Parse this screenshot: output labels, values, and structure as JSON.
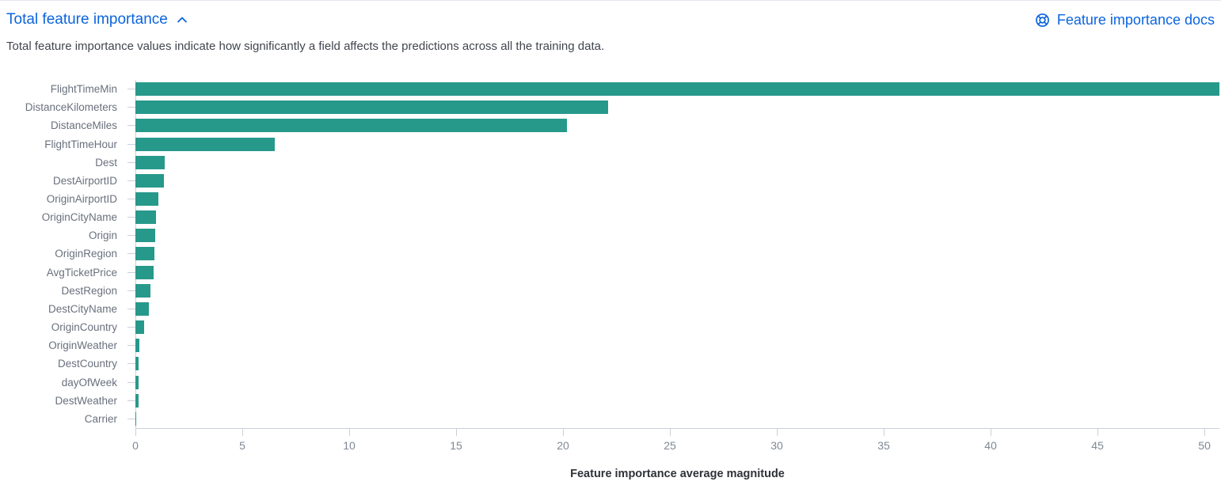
{
  "panel": {
    "title": "Total feature importance",
    "description": "Total feature importance values indicate how significantly a field affects the predictions across all the training data.",
    "docs_link": "Feature importance docs",
    "collapse_icon": "chevron-up-icon",
    "docs_icon": "help-lifebuoy-icon"
  },
  "colors": {
    "bar": "#26998b",
    "link": "#0b64dd",
    "text": "#41464d",
    "y_label": "#69707d",
    "tick_label": "#7f8896",
    "axis_line": "#cad0da",
    "axis_title": "#2f3238",
    "top_border": "#e2e6ed"
  },
  "chart_data": {
    "type": "bar",
    "orientation": "horizontal",
    "title": "Total feature importance",
    "xlabel": "Feature importance average magnitude",
    "ylabel": "",
    "categories": [
      "FlightTimeMin",
      "DistanceKilometers",
      "DistanceMiles",
      "FlightTimeHour",
      "Dest",
      "DestAirportID",
      "OriginAirportID",
      "OriginCityName",
      "Origin",
      "OriginRegion",
      "AvgTicketPrice",
      "DestRegion",
      "DestCityName",
      "OriginCountry",
      "OriginWeather",
      "DestCountry",
      "dayOfWeek",
      "DestWeather",
      "Carrier"
    ],
    "values": [
      50.7,
      22.1,
      20.2,
      6.5,
      1.36,
      1.33,
      1.06,
      0.97,
      0.94,
      0.88,
      0.85,
      0.69,
      0.63,
      0.42,
      0.2,
      0.16,
      0.15,
      0.13,
      0.04
    ],
    "x_ticks": [
      0,
      5,
      10,
      15,
      20,
      25,
      30,
      35,
      40,
      45,
      50
    ],
    "xlim": [
      0,
      50.7
    ],
    "grid": false,
    "legend": false
  }
}
